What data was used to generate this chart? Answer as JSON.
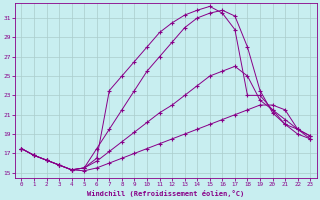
{
  "xlabel": "Windchill (Refroidissement éolien,°C)",
  "bg_color": "#c8eef0",
  "line_color": "#880088",
  "grid_color": "#aacccc",
  "ylim": [
    14.5,
    32.5
  ],
  "xlim": [
    -0.5,
    23.5
  ],
  "yticks": [
    15,
    17,
    19,
    21,
    23,
    25,
    27,
    29,
    31
  ],
  "xticks": [
    0,
    1,
    2,
    3,
    4,
    5,
    6,
    7,
    8,
    9,
    10,
    11,
    12,
    13,
    14,
    15,
    16,
    17,
    18,
    19,
    20,
    21,
    22,
    23
  ],
  "line1_x": [
    0,
    1,
    2,
    3,
    4,
    5,
    6,
    7,
    8,
    9,
    10,
    11,
    12,
    13,
    14,
    15,
    16,
    17,
    18,
    19,
    20,
    21,
    22,
    23
  ],
  "line1_y": [
    17.5,
    16.8,
    16.3,
    15.8,
    15.3,
    15.2,
    15.5,
    16.0,
    16.5,
    17.0,
    17.5,
    18.0,
    18.5,
    19.0,
    19.5,
    20.0,
    20.5,
    21.0,
    21.5,
    22.0,
    22.0,
    21.5,
    19.5,
    18.5
  ],
  "line2_x": [
    0,
    1,
    2,
    3,
    4,
    5,
    6,
    7,
    8,
    9,
    10,
    11,
    12,
    13,
    14,
    15,
    16,
    17,
    18,
    19,
    20,
    21,
    22,
    23
  ],
  "line2_y": [
    17.5,
    16.8,
    16.3,
    15.8,
    15.3,
    15.5,
    16.2,
    17.2,
    18.2,
    19.2,
    20.2,
    21.2,
    22.0,
    23.0,
    24.0,
    25.0,
    25.5,
    26.0,
    25.0,
    22.5,
    21.5,
    20.5,
    19.5,
    18.8
  ],
  "line3_x": [
    0,
    1,
    2,
    3,
    4,
    5,
    6,
    7,
    8,
    9,
    10,
    11,
    12,
    13,
    14,
    15,
    16,
    17,
    18,
    19,
    20,
    21,
    22,
    23
  ],
  "line3_y": [
    17.5,
    16.8,
    16.3,
    15.8,
    15.3,
    15.5,
    17.5,
    19.5,
    21.5,
    23.5,
    25.5,
    27.0,
    28.5,
    30.0,
    31.0,
    31.5,
    31.8,
    31.2,
    28.0,
    23.5,
    21.2,
    20.0,
    19.5,
    18.8
  ],
  "line4_x": [
    0,
    1,
    2,
    3,
    4,
    5,
    6,
    7,
    8,
    9,
    10,
    11,
    12,
    13,
    14,
    15,
    16,
    17,
    18,
    19,
    20,
    21,
    22,
    23
  ],
  "line4_y": [
    17.5,
    16.8,
    16.3,
    15.8,
    15.3,
    15.5,
    16.5,
    23.5,
    25.0,
    26.5,
    28.0,
    29.5,
    30.5,
    31.3,
    31.8,
    32.2,
    31.5,
    29.8,
    23.0,
    23.0,
    21.5,
    20.0,
    19.0,
    18.5
  ]
}
